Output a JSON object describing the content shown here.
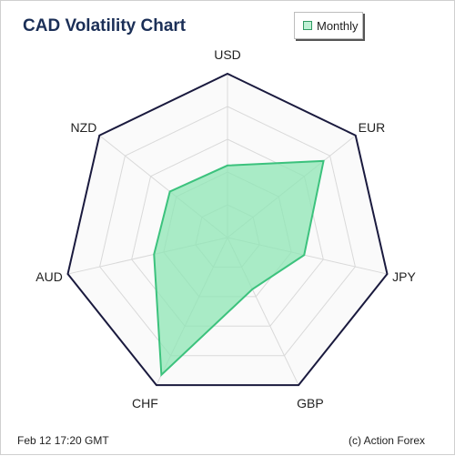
{
  "chart_data": {
    "type": "radar",
    "title": "CAD Volatility Chart",
    "categories": [
      "USD",
      "EUR",
      "JPY",
      "GBP",
      "CHF",
      "AUD",
      "NZD"
    ],
    "series": [
      {
        "name": "Monthly",
        "values": [
          0.44,
          0.75,
          0.48,
          0.35,
          0.93,
          0.46,
          0.45
        ]
      }
    ],
    "rlim": [
      0,
      1
    ],
    "rings": 5,
    "grid": true,
    "legend_position": "top-right",
    "colors": {
      "outline": "#1a1a3e",
      "grid": "#d9d9d9",
      "fill": "#8ee6b4",
      "stroke": "#3cc27d"
    }
  },
  "footer": {
    "timestamp": "Feb 12  17:20 GMT",
    "credit": "(c) Action Forex"
  }
}
